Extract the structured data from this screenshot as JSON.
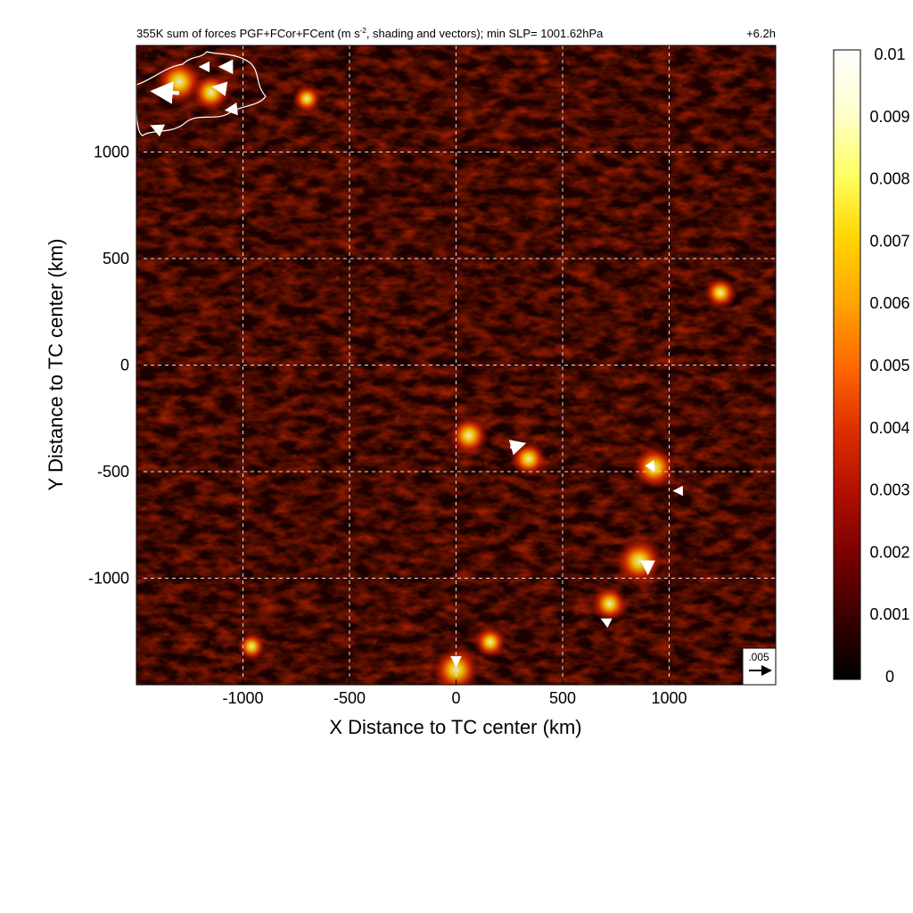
{
  "chart_data": {
    "type": "heatmap",
    "title_main": "355K sum of forces PGF+FCor+FCent (m s",
    "title_sup": "-2",
    "title_rest": ", shading and vectors); min SLP= 1001.62hPa",
    "time_label": "+6.2h",
    "xlabel": "X Distance to TC center (km)",
    "ylabel": "Y Distance to TC center (km)",
    "xlim": [
      -1500,
      1500
    ],
    "ylim": [
      -1500,
      1500
    ],
    "x_ticks": [
      -1000,
      -500,
      0,
      500,
      1000
    ],
    "x_tick_labels": [
      "-1000",
      "-500",
      "0",
      "500",
      "1000"
    ],
    "y_ticks": [
      -1000,
      -500,
      0,
      500,
      1000
    ],
    "y_tick_labels": [
      "-1000",
      "-500",
      "0",
      "500",
      "1000"
    ],
    "grid": true,
    "colorbar": {
      "min": 0,
      "max": 0.01,
      "ticks": [
        0,
        0.001,
        0.002,
        0.003,
        0.004,
        0.005,
        0.006,
        0.007,
        0.008,
        0.009,
        0.01
      ],
      "tick_labels": [
        "0",
        "0.001",
        "0.002",
        "0.003",
        "0.004",
        "0.005",
        "0.006",
        "0.007",
        "0.008",
        "0.009",
        "0.01"
      ],
      "colormap": [
        "#000000",
        "#3a0000",
        "#7a0000",
        "#b31000",
        "#e03000",
        "#ff6a00",
        "#ffa500",
        "#ffd400",
        "#ffff60",
        "#ffffd0",
        "#ffffff"
      ]
    },
    "reference_vector": {
      "label": ".005",
      "magnitude": 0.005
    },
    "hotspots": [
      {
        "x": -1300,
        "y": 1330,
        "v": 0.008
      },
      {
        "x": -1150,
        "y": 1280,
        "v": 0.006
      },
      {
        "x": -700,
        "y": 1250,
        "v": 0.003
      },
      {
        "x": 60,
        "y": -330,
        "v": 0.006
      },
      {
        "x": 340,
        "y": -440,
        "v": 0.005
      },
      {
        "x": 930,
        "y": -480,
        "v": 0.007
      },
      {
        "x": 860,
        "y": -920,
        "v": 0.008
      },
      {
        "x": 720,
        "y": -1120,
        "v": 0.005
      },
      {
        "x": 0,
        "y": -1430,
        "v": 0.008
      },
      {
        "x": 160,
        "y": -1300,
        "v": 0.004
      },
      {
        "x": 1240,
        "y": 340,
        "v": 0.004
      },
      {
        "x": -960,
        "y": -1320,
        "v": 0.003
      }
    ],
    "vectors": [
      {
        "x": -1350,
        "y": 1280,
        "u": -0.0055,
        "v": 0.0004
      },
      {
        "x": -1070,
        "y": 1400,
        "u": -0.0025,
        "v": 0.0
      },
      {
        "x": -1180,
        "y": 1400,
        "u": -0.0012,
        "v": 0.0
      },
      {
        "x": -1050,
        "y": 1200,
        "u": -0.0018,
        "v": -0.0002
      },
      {
        "x": -1100,
        "y": 1300,
        "u": -0.0025,
        "v": 0.0004
      },
      {
        "x": -1400,
        "y": 1110,
        "u": -0.0018,
        "v": 0.0008
      },
      {
        "x": 280,
        "y": -380,
        "u": 0.0028,
        "v": 0.0008
      },
      {
        "x": 900,
        "y": -940,
        "u": 0.0,
        "v": -0.0025
      },
      {
        "x": 0,
        "y": -1390,
        "u": 0.0,
        "v": -0.0012
      },
      {
        "x": 920,
        "y": -480,
        "u": 0.0005,
        "v": -0.0008
      },
      {
        "x": 700,
        "y": -1200,
        "u": -0.0008,
        "v": 0.0004
      },
      {
        "x": 1040,
        "y": -590,
        "u": -0.0008,
        "v": 0.0
      },
      {
        "x": 1400,
        "y": -1420,
        "u": 0.0012,
        "v": 0.0
      }
    ]
  },
  "icons": {
    "vector_arrow": "arrow-icon",
    "contour": "coastline"
  }
}
